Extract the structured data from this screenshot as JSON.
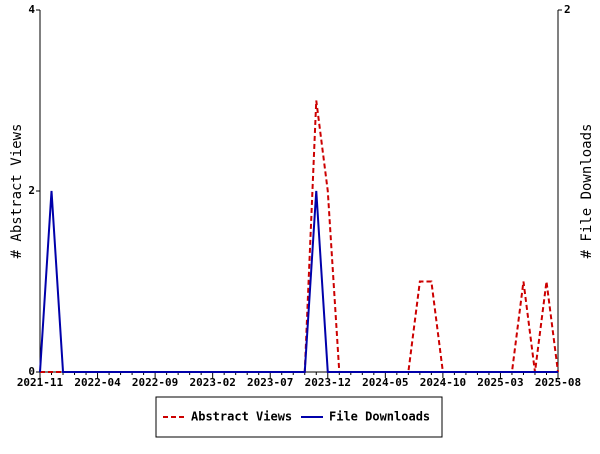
{
  "chart_data": {
    "type": "line",
    "ylabel": "# Abstract Views",
    "y2label": "# File Downloads",
    "categories": [
      "2021-11",
      null,
      null,
      null,
      null,
      "2022-04",
      null,
      null,
      null,
      null,
      "2022-09",
      null,
      null,
      null,
      null,
      "2023-02",
      null,
      null,
      null,
      null,
      "2023-07",
      null,
      null,
      null,
      null,
      "2023-12",
      null,
      null,
      null,
      null,
      "2024-05",
      null,
      null,
      null,
      null,
      "2024-10",
      null,
      null,
      null,
      null,
      "2025-03",
      null,
      null,
      null,
      null,
      "2025-08"
    ],
    "series": [
      {
        "name": "Abstract Views",
        "color": "#cc0000",
        "dash": true,
        "axis": "y",
        "values": [
          0,
          0,
          0,
          0,
          0,
          0,
          0,
          0,
          0,
          0,
          0,
          0,
          0,
          0,
          0,
          0,
          0,
          0,
          0,
          0,
          0,
          0,
          0,
          0,
          3,
          2,
          0,
          0,
          0,
          0,
          0,
          0,
          0,
          1,
          1,
          0,
          0,
          0,
          0,
          0,
          0,
          0,
          1,
          0,
          1,
          0
        ]
      },
      {
        "name": "File Downloads",
        "color": "#0000aa",
        "dash": false,
        "axis": "y2",
        "values": [
          0,
          1,
          0,
          0,
          0,
          0,
          0,
          0,
          0,
          0,
          0,
          0,
          0,
          0,
          0,
          0,
          0,
          0,
          0,
          0,
          0,
          0,
          0,
          0,
          1,
          0,
          0,
          0,
          0,
          0,
          0,
          0,
          0,
          0,
          0,
          0,
          0,
          0,
          0,
          0,
          0,
          0,
          0,
          0,
          0,
          0
        ]
      }
    ],
    "ylim": [
      0,
      4
    ],
    "yticks": [
      0,
      2,
      4
    ],
    "y2lim": [
      0,
      2
    ],
    "y2ticks": [
      2
    ]
  }
}
